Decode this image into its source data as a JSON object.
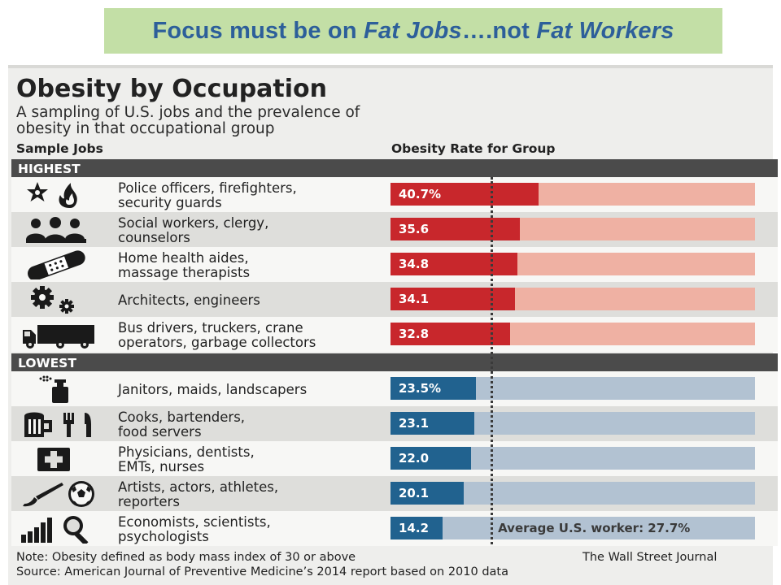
{
  "banner": {
    "part1": "Focus must be on ",
    "part2": "Fat Jobs",
    "part3": "….not ",
    "part4": "Fat Workers"
  },
  "colors": {
    "banner_bg": "#c3dfa6",
    "banner_text": "#2d5f9a",
    "highest_fill": "#c8272c",
    "highest_track": "#efb1a3",
    "lowest_fill": "#21628f",
    "lowest_track": "#b2c2d2",
    "group_header": "#4b4b4b"
  },
  "chart_data": {
    "type": "bar",
    "orientation": "horizontal",
    "title": "Obesity by Occupation",
    "subtitle_lines": [
      "A sampling of U.S. jobs and the prevalence of",
      "obesity in that occupational group"
    ],
    "column_headers": {
      "jobs": "Sample Jobs",
      "rate": "Obesity Rate for Group"
    },
    "xlim": [
      0,
      100
    ],
    "grid": false,
    "groups": [
      {
        "name": "HIGHEST",
        "rows": [
          {
            "label_lines": [
              "Police officers, firefighters,",
              "security guards"
            ],
            "value": 40.7,
            "value_label": "40.7%",
            "icon": "badge-flame-icon"
          },
          {
            "label_lines": [
              "Social workers, clergy,",
              "counselors"
            ],
            "value": 35.6,
            "value_label": "35.6",
            "icon": "people-icon"
          },
          {
            "label_lines": [
              "Home health aides,",
              "massage therapists"
            ],
            "value": 34.8,
            "value_label": "34.8",
            "icon": "bandage-icon"
          },
          {
            "label_lines": [
              "Architects, engineers"
            ],
            "value": 34.1,
            "value_label": "34.1",
            "icon": "gears-icon"
          },
          {
            "label_lines": [
              "Bus drivers, truckers, crane",
              "operators, garbage collectors"
            ],
            "value": 32.8,
            "value_label": "32.8",
            "icon": "truck-icon"
          }
        ]
      },
      {
        "name": "LOWEST",
        "rows": [
          {
            "label_lines": [
              "Janitors, maids, landscapers"
            ],
            "value": 23.5,
            "value_label": "23.5%",
            "icon": "spray-bottle-icon"
          },
          {
            "label_lines": [
              "Cooks, bartenders,",
              "food servers"
            ],
            "value": 23.1,
            "value_label": "23.1",
            "icon": "beer-mug-utensils-icon"
          },
          {
            "label_lines": [
              "Physicians, dentists,",
              "EMTs, nurses"
            ],
            "value": 22.0,
            "value_label": "22.0",
            "icon": "medical-cross-icon"
          },
          {
            "label_lines": [
              "Artists, actors, athletes,",
              "reporters"
            ],
            "value": 20.1,
            "value_label": "20.1",
            "icon": "brush-ball-icon"
          },
          {
            "label_lines": [
              "Economists, scientists,",
              "psychologists"
            ],
            "value": 14.2,
            "value_label": "14.2",
            "icon": "chart-magnifier-icon"
          }
        ]
      }
    ],
    "reference": {
      "value": 27.7,
      "label": "Average U.S. worker: 27.7%",
      "style": "dotted"
    },
    "note": "Note: Obesity defined as body mass index of 30 or above",
    "source": "Source: American Journal of Preventive Medicine’s 2014 report based on 2010 data",
    "credit": "The Wall Street Journal"
  }
}
